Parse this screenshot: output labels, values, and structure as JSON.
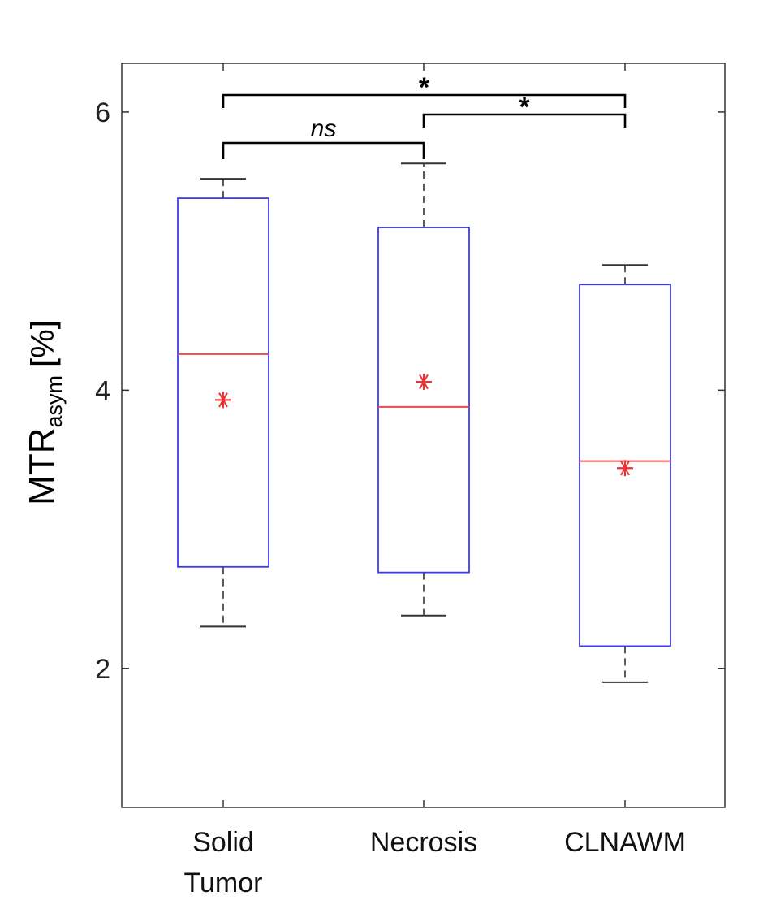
{
  "chart_data": {
    "type": "box",
    "ylabel": {
      "main": "MTR",
      "sub": "asym",
      "unit": "[%]"
    },
    "yticks": [
      2,
      4,
      6
    ],
    "ylim": [
      1,
      6.35
    ],
    "grid": false,
    "categories": [
      {
        "label_lines": [
          "Solid",
          "Tumor"
        ],
        "whisker_low": 2.3,
        "q1": 2.73,
        "median": 4.26,
        "q3": 5.38,
        "whisker_high": 5.52,
        "mean": 3.93
      },
      {
        "label_lines": [
          "Necrosis"
        ],
        "whisker_low": 2.38,
        "q1": 2.69,
        "median": 3.88,
        "q3": 5.17,
        "whisker_high": 5.63,
        "mean": 4.06
      },
      {
        "label_lines": [
          "CLNAWM"
        ],
        "whisker_low": 1.9,
        "q1": 2.16,
        "median": 3.49,
        "q3": 4.76,
        "whisker_high": 4.9,
        "mean": 3.44
      }
    ],
    "significance": [
      {
        "from": 0,
        "to": 2,
        "label": "*",
        "italic": false
      },
      {
        "from": 1,
        "to": 2,
        "label": "*",
        "italic": false
      },
      {
        "from": 0,
        "to": 1,
        "label": "ns",
        "italic": true
      }
    ],
    "colors": {
      "box": "#3b3bf0",
      "median": "#f04848",
      "mean": "#f03030",
      "whisker": "#333333",
      "axis": "#333333"
    }
  }
}
